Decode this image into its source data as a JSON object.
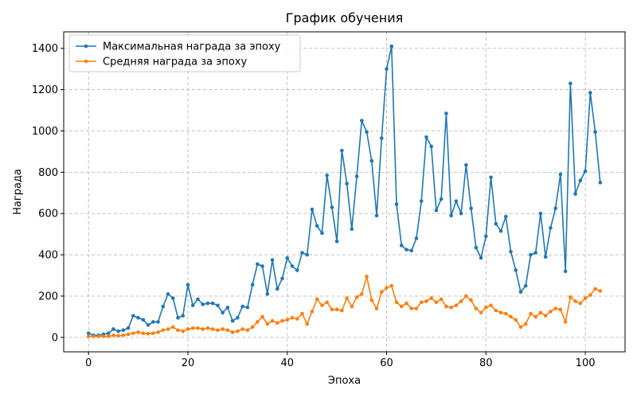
{
  "chart_data": {
    "type": "line",
    "title": "График обучения",
    "xlabel": "Эпоха",
    "ylabel": "Награда",
    "xlim": [
      -5,
      108
    ],
    "ylim": [
      -70,
      1480
    ],
    "xticks": [
      0,
      20,
      40,
      60,
      80,
      100
    ],
    "yticks": [
      0,
      200,
      400,
      600,
      800,
      1000,
      1200,
      1400
    ],
    "grid": true,
    "legend": "top-left",
    "series": [
      {
        "name": "Максимальная награда за эпоху",
        "color": "#1f77b4",
        "values": [
          20,
          10,
          10,
          15,
          20,
          40,
          30,
          35,
          45,
          105,
          95,
          85,
          60,
          75,
          75,
          150,
          210,
          190,
          95,
          105,
          255,
          155,
          185,
          160,
          165,
          165,
          155,
          120,
          145,
          80,
          95,
          150,
          145,
          255,
          355,
          345,
          210,
          375,
          235,
          285,
          385,
          345,
          325,
          410,
          400,
          620,
          540,
          505,
          785,
          630,
          465,
          905,
          745,
          525,
          780,
          1050,
          995,
          855,
          590,
          965,
          1300,
          1410,
          645,
          445,
          425,
          420,
          480,
          660,
          970,
          925,
          615,
          670,
          1085,
          590,
          660,
          600,
          835,
          625,
          435,
          385,
          490,
          775,
          550,
          515,
          585,
          415,
          325,
          220,
          250,
          400,
          410,
          600,
          390,
          530,
          625,
          790,
          320,
          1230,
          695,
          760,
          805,
          1185,
          995,
          750
        ]
      },
      {
        "name": "Средняя награда за эпоху",
        "color": "#ff7f0e",
        "values": [
          5,
          5,
          5,
          5,
          5,
          10,
          8,
          10,
          15,
          20,
          25,
          20,
          18,
          20,
          25,
          35,
          40,
          50,
          35,
          30,
          40,
          45,
          45,
          40,
          45,
          40,
          35,
          40,
          35,
          25,
          30,
          40,
          35,
          50,
          75,
          100,
          65,
          80,
          70,
          80,
          85,
          95,
          90,
          115,
          65,
          125,
          185,
          155,
          170,
          135,
          135,
          130,
          190,
          150,
          195,
          210,
          295,
          180,
          140,
          220,
          240,
          250,
          170,
          150,
          165,
          140,
          140,
          170,
          175,
          190,
          170,
          185,
          150,
          145,
          155,
          175,
          200,
          180,
          140,
          120,
          145,
          155,
          130,
          120,
          115,
          100,
          85,
          50,
          65,
          115,
          100,
          120,
          105,
          125,
          140,
          135,
          75,
          195,
          175,
          165,
          190,
          205,
          235,
          225
        ]
      }
    ]
  }
}
